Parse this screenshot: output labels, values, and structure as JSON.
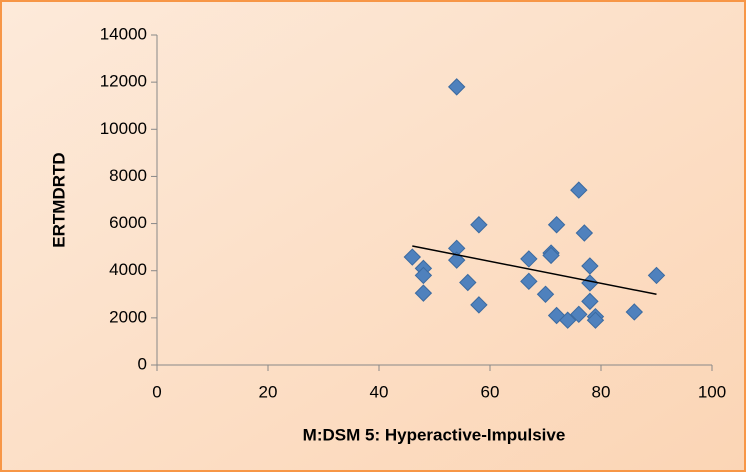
{
  "chart_data": {
    "type": "scatter",
    "x_label": "M:DSM 5: Hyperactive-Impulsive",
    "y_label": "ERTMDRTD",
    "x": [
      46,
      48,
      48,
      48,
      54,
      54,
      54,
      56,
      58,
      58,
      67,
      67,
      70,
      71,
      71,
      72,
      72,
      74,
      76,
      76,
      77,
      78,
      78,
      78,
      79,
      79,
      86,
      90
    ],
    "values": [
      4580,
      4100,
      3800,
      3050,
      11800,
      4950,
      4450,
      3500,
      5950,
      2550,
      4500,
      3550,
      3000,
      4750,
      4650,
      5950,
      2100,
      1900,
      2150,
      7420,
      5600,
      4200,
      3480,
      2700,
      2050,
      1900,
      2250,
      3800
    ],
    "color": "#4f81bd",
    "trendline": {
      "x": [
        46,
        90
      ],
      "values": [
        5050,
        3000
      ],
      "color": "#000000"
    },
    "xlim": [
      0,
      100
    ],
    "xticks": [
      0,
      20,
      40,
      60,
      80,
      100
    ],
    "ylim": [
      0,
      14000
    ],
    "yticks": [
      0,
      2000,
      4000,
      6000,
      8000,
      10000,
      12000,
      14000
    ],
    "grid": false
  }
}
